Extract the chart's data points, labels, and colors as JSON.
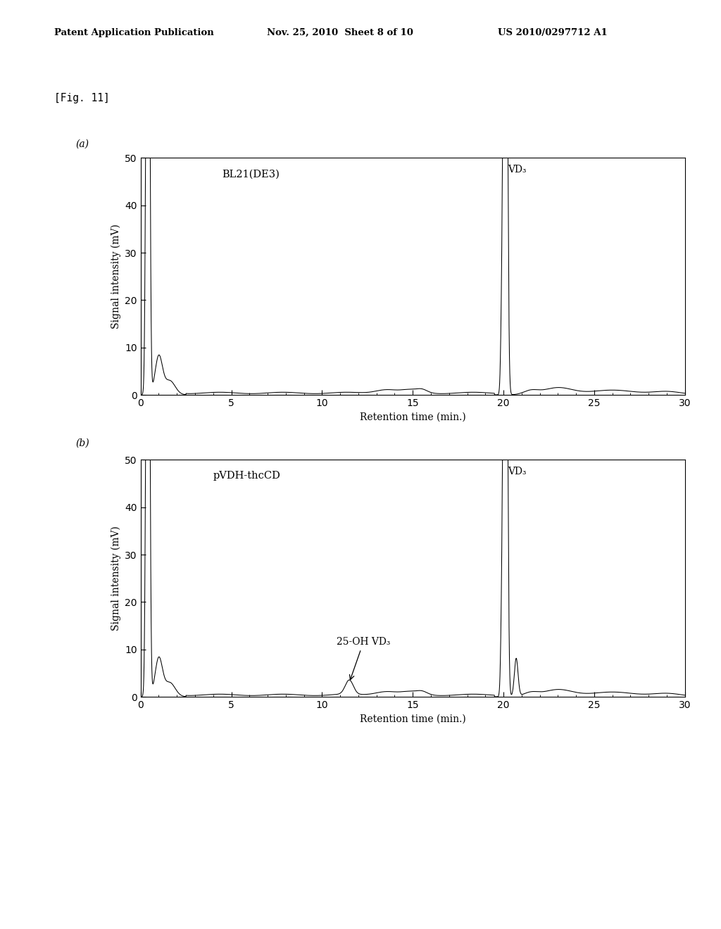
{
  "header_left": "Patent Application Publication",
  "header_mid": "Nov. 25, 2010  Sheet 8 of 10",
  "header_right": "US 2010/0297712 A1",
  "fig_label": "[Fig. 11]",
  "panel_a_label": "(a)",
  "panel_b_label": "(b)",
  "xlabel": "Retention time (min.)",
  "ylabel": "Signal intensity (mV)",
  "xlim": [
    0,
    30
  ],
  "ylim": [
    0,
    50
  ],
  "xticks": [
    0,
    5,
    10,
    15,
    20,
    25,
    30
  ],
  "yticks": [
    0,
    10,
    20,
    30,
    40,
    50
  ],
  "panel_a_annotation": "BL21(DE3)",
  "panel_a_vd3_label": "VD₃",
  "panel_b_annotation": "pVDH-thcCD",
  "panel_b_vd3_label": "VD₃",
  "panel_b_peak_label": "25-OH VD₃",
  "background_color": "#ffffff",
  "line_color": "#000000"
}
